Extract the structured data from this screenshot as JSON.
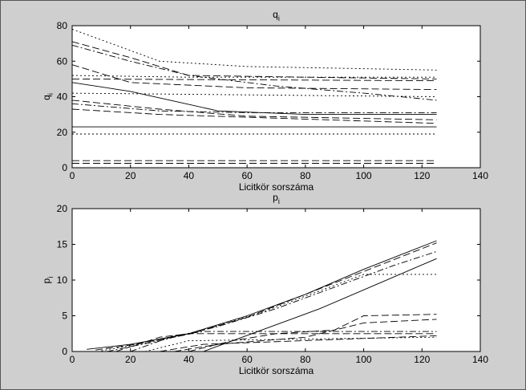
{
  "chart_data": [
    {
      "type": "line",
      "title": "q",
      "title_subscript": "i",
      "xlabel": "Licitkör sorszáma",
      "ylabel": "q",
      "ylabel_subscript": "i",
      "xlim": [
        0,
        140
      ],
      "ylim": [
        0,
        80
      ],
      "xticks": [
        "0",
        "20",
        "40",
        "60",
        "80",
        "100",
        "120",
        "140"
      ],
      "yticks": [
        "0",
        "20",
        "40",
        "60",
        "80"
      ],
      "grid": false,
      "series": [
        {
          "style": "dotted",
          "points": [
            [
              0,
              78
            ],
            [
              30,
              60
            ],
            [
              60,
              57
            ],
            [
              125,
              55
            ]
          ]
        },
        {
          "style": "dashed",
          "points": [
            [
              0,
              71
            ],
            [
              20,
              62
            ],
            [
              40,
              52
            ],
            [
              80,
              51
            ],
            [
              125,
              50
            ]
          ]
        },
        {
          "style": "dashdot",
          "points": [
            [
              0,
              69
            ],
            [
              20,
              60
            ],
            [
              40,
              52
            ],
            [
              70,
              46
            ],
            [
              100,
              42
            ],
            [
              125,
              38
            ]
          ]
        },
        {
          "style": "dashed",
          "points": [
            [
              0,
              58
            ],
            [
              20,
              48
            ],
            [
              60,
              45
            ],
            [
              125,
              44
            ]
          ]
        },
        {
          "style": "dotted",
          "points": [
            [
              0,
              52
            ],
            [
              40,
              51
            ],
            [
              125,
              51
            ]
          ]
        },
        {
          "style": "dashed",
          "points": [
            [
              0,
              50
            ],
            [
              125,
              49
            ]
          ]
        },
        {
          "style": "solid",
          "points": [
            [
              0,
              48
            ],
            [
              20,
              43
            ],
            [
              50,
              32
            ],
            [
              80,
              30
            ],
            [
              125,
              30
            ]
          ]
        },
        {
          "style": "dotted",
          "points": [
            [
              0,
              42
            ],
            [
              125,
              40
            ]
          ]
        },
        {
          "style": "dashed",
          "points": [
            [
              0,
              38
            ],
            [
              30,
              33
            ],
            [
              60,
              29
            ],
            [
              125,
              27
            ]
          ]
        },
        {
          "style": "dashdot",
          "points": [
            [
              0,
              36
            ],
            [
              30,
              32
            ],
            [
              60,
              31
            ],
            [
              125,
              31
            ]
          ]
        },
        {
          "style": "dashed",
          "points": [
            [
              0,
              33
            ],
            [
              30,
              30
            ],
            [
              125,
              25
            ]
          ]
        },
        {
          "style": "solid",
          "points": [
            [
              0,
              23
            ],
            [
              125,
              23
            ]
          ]
        },
        {
          "style": "dotted",
          "points": [
            [
              0,
              19
            ],
            [
              125,
              19
            ]
          ]
        },
        {
          "style": "dashed",
          "points": [
            [
              0,
              4
            ],
            [
              125,
              4
            ]
          ]
        },
        {
          "style": "dashed",
          "points": [
            [
              0,
              2.5
            ],
            [
              125,
              2.5
            ]
          ]
        }
      ]
    },
    {
      "type": "line",
      "title": "p",
      "title_subscript": "i",
      "xlabel": "Licitkör sorszáma",
      "ylabel": "p",
      "ylabel_subscript": "i",
      "xlim": [
        0,
        140
      ],
      "ylim": [
        0,
        20
      ],
      "xticks": [
        "0",
        "20",
        "40",
        "60",
        "80",
        "100",
        "120",
        "140"
      ],
      "yticks": [
        "0",
        "5",
        "10",
        "15",
        "20"
      ],
      "grid": false,
      "series": [
        {
          "style": "solid",
          "points": [
            [
              5,
              0.3
            ],
            [
              20,
              1
            ],
            [
              40,
              2.5
            ],
            [
              60,
              5
            ],
            [
              80,
              8
            ],
            [
              100,
              11.5
            ],
            [
              125,
              15.5
            ]
          ]
        },
        {
          "style": "dashed",
          "points": [
            [
              8,
              0.2
            ],
            [
              20,
              0.9
            ],
            [
              40,
              2.4
            ],
            [
              60,
              4.8
            ],
            [
              80,
              8
            ],
            [
              100,
              11.2
            ],
            [
              125,
              15.2
            ]
          ]
        },
        {
          "style": "dotted",
          "points": [
            [
              10,
              0.1
            ],
            [
              25,
              1.2
            ],
            [
              45,
              3
            ],
            [
              65,
              5.5
            ],
            [
              85,
              8.5
            ],
            [
              100,
              10.8
            ],
            [
              125,
              10.8
            ]
          ]
        },
        {
          "style": "dashdot",
          "points": [
            [
              12,
              0
            ],
            [
              30,
              1.5
            ],
            [
              50,
              3.5
            ],
            [
              70,
              6
            ],
            [
              90,
              9
            ],
            [
              110,
              12
            ],
            [
              125,
              14
            ]
          ]
        },
        {
          "style": "solid",
          "points": [
            [
              45,
              0
            ],
            [
              65,
              3
            ],
            [
              85,
              6
            ],
            [
              105,
              9.5
            ],
            [
              125,
              13
            ]
          ]
        },
        {
          "style": "dashed",
          "points": [
            [
              15,
              0
            ],
            [
              30,
              2
            ],
            [
              40,
              2.5
            ],
            [
              125,
              2.5
            ]
          ]
        },
        {
          "style": "dashdot",
          "points": [
            [
              20,
              0
            ],
            [
              35,
              2.2
            ],
            [
              45,
              2.8
            ],
            [
              125,
              2.8
            ]
          ]
        },
        {
          "style": "dashed",
          "points": [
            [
              40,
              0
            ],
            [
              55,
              1.5
            ],
            [
              70,
              2.5
            ],
            [
              90,
              3
            ],
            [
              100,
              5
            ],
            [
              125,
              5.2
            ]
          ]
        },
        {
          "style": "dashed",
          "points": [
            [
              35,
              0
            ],
            [
              50,
              1
            ],
            [
              80,
              2
            ],
            [
              100,
              4
            ],
            [
              125,
              4.5
            ]
          ]
        },
        {
          "style": "dotted",
          "points": [
            [
              25,
              0
            ],
            [
              40,
              1.5
            ],
            [
              125,
              2
            ]
          ]
        },
        {
          "style": "dashed",
          "points": [
            [
              30,
              0
            ],
            [
              45,
              1
            ],
            [
              125,
              2.2
            ]
          ]
        }
      ]
    }
  ]
}
